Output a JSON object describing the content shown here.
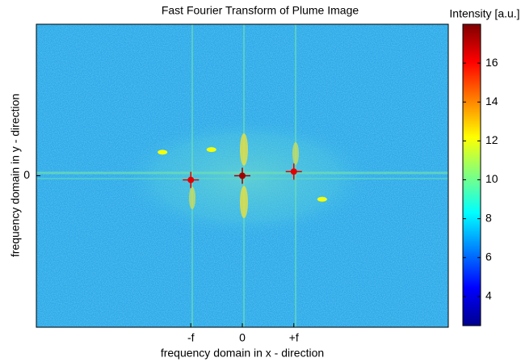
{
  "chart_data": {
    "type": "image",
    "title": "Fast Fourier Transform of Plume Image",
    "x_label": "frequency domain in x - direction",
    "y_label": "frequency domain in y - direction",
    "xlim": [
      -4,
      4
    ],
    "ylim": [
      -2.9,
      2.9
    ],
    "xticks": [
      {
        "value": -1,
        "label": "-f"
      },
      0,
      {
        "value": 1,
        "label": "+f"
      }
    ],
    "yticks": [
      0
    ],
    "colormap": "jet",
    "colorbar": {
      "title": "Intensity [a.u.]",
      "clim": [
        2.5,
        18
      ],
      "ticks": [
        4,
        6,
        8,
        10,
        12,
        14,
        16
      ]
    },
    "peaks": {
      "x": [
        0,
        -1,
        1,
        -1.55,
        -0.6,
        1.55
      ],
      "y": [
        0,
        -0.08,
        0.08,
        0.45,
        0.5,
        -0.45
      ],
      "values": [
        17.5,
        16.5,
        16.5,
        12,
        12,
        12
      ]
    }
  }
}
